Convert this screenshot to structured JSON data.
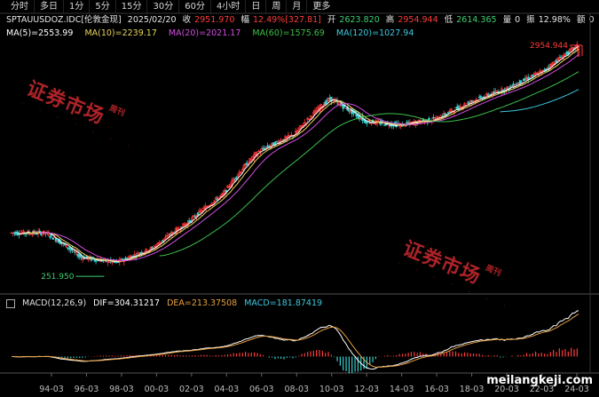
{
  "tabs": [
    "分时",
    "多日",
    "1分",
    "5分",
    "15分",
    "30分",
    "60分",
    "4小时",
    "日",
    "周",
    "月",
    "更多"
  ],
  "quote": {
    "symbol": "SPTAUUSDOZ.IDC[伦敦金现]",
    "date": "2025/02/20",
    "close_label": "收",
    "close": "2951.970",
    "change_label": "幅",
    "change": "12.49%[327.81]",
    "open_label": "开",
    "open": "2623.820",
    "high_label": "高",
    "high": "2954.944",
    "low_label": "低",
    "low": "2614.365",
    "volume_label": "量",
    "volume": "0",
    "amplitude_label": "振",
    "amplitude": "12.98%",
    "turnover_label": "额",
    "turnover": "0"
  },
  "ma": {
    "ma5": "MA(5)=2553.99",
    "ma10": "MA(10)=2239.17",
    "ma20": "MA(20)=2021.17",
    "ma60": "MA(60)=1575.69",
    "ma120": "MA(120)=1027.94"
  },
  "macd": {
    "title": "MACD(12,26,9)",
    "dif": "DIF=304.31217",
    "dea": "DEA=213.37508",
    "macd": "MACD=181.87419"
  },
  "annotations": {
    "high_marker": "2954.944",
    "low_marker": "251.950"
  },
  "xaxis": [
    "94-03",
    "96-03",
    "98-03",
    "00-03",
    "02-03",
    "04-03",
    "06-03",
    "08-03",
    "10-03",
    "12-03",
    "14-03",
    "16-03",
    "18-03",
    "20-03",
    "22-03",
    "24-03"
  ],
  "watermark": {
    "main": "证券市场",
    "side": "周刊"
  },
  "site": "meilangkeji.com",
  "colors": {
    "up": "#ff3b3b",
    "down": "#3cd0d0",
    "ma5": "#ffffff",
    "ma10": "#e8d65a",
    "ma20": "#d24de0",
    "ma60": "#3cbf4a",
    "ma120": "#3fc8e0",
    "dea": "#e8a040"
  },
  "chart_data": {
    "type": "candlestick",
    "title": "",
    "xlabel": "",
    "ylabel": "",
    "x": [
      "94-03",
      "96-03",
      "98-03",
      "00-03",
      "02-03",
      "04-03",
      "06-03",
      "08-03",
      "10-03",
      "12-03",
      "14-03",
      "16-03",
      "18-03",
      "20-03",
      "22-03",
      "24-03",
      "25-02"
    ],
    "close": [
      385,
      385,
      295,
      279,
      325,
      430,
      585,
      935,
      1120,
      1655,
      1295,
      1240,
      1330,
      1610,
      1850,
      2230,
      2951.97
    ],
    "ma10": [
      380,
      384,
      330,
      285,
      300,
      390,
      520,
      800,
      1050,
      1600,
      1450,
      1250,
      1290,
      1500,
      1800,
      2050,
      2239.17
    ],
    "ma20": [
      375,
      380,
      345,
      300,
      290,
      350,
      460,
      700,
      950,
      1450,
      1500,
      1350,
      1300,
      1420,
      1700,
      1900,
      2021.17
    ],
    "ma60": [
      null,
      null,
      null,
      null,
      340,
      340,
      350,
      420,
      560,
      760,
      960,
      1100,
      1180,
      1280,
      1400,
      1500,
      1575.69
    ],
    "ma120": [
      null,
      null,
      null,
      null,
      null,
      null,
      null,
      null,
      null,
      null,
      null,
      null,
      null,
      null,
      820,
      920,
      1027.94
    ],
    "high": 2954.944,
    "low": 251.95,
    "ylim": [
      200,
      3100
    ],
    "macd": {
      "dif": 304.31217,
      "dea": 213.37508,
      "macd": 181.87419
    }
  }
}
